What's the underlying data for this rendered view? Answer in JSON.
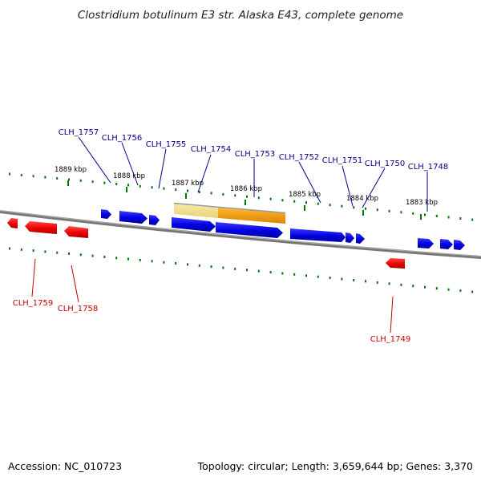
{
  "title": "Clostridium botulinum E3 str. Alaska E43, complete genome",
  "footer": {
    "accession": "Accession: NC_010723",
    "summary": "Topology: circular; Length: 3,659,644 bp; Genes: 3,370"
  },
  "colors": {
    "forward_gene": "#0000e0",
    "reverse_gene": "#ee0000",
    "backbone": "#777777",
    "tick": "#007700",
    "highlight_light": "#f2e08a",
    "highlight_dark": "#ff9900"
  },
  "ticks": [
    "1889 kbp",
    "1888 kbp",
    "1887 kbp",
    "1886 kbp",
    "1885 kbp",
    "1884 kbp",
    "1883 kbp"
  ],
  "forward_genes": [
    "CLH_1757",
    "CLH_1756",
    "CLH_1755",
    "CLH_1754",
    "CLH_1753",
    "CLH_1752",
    "CLH_1751",
    "CLH_1750",
    "CLH_1748"
  ],
  "reverse_genes": [
    "CLH_1759",
    "CLH_1758",
    "CLH_1749"
  ]
}
